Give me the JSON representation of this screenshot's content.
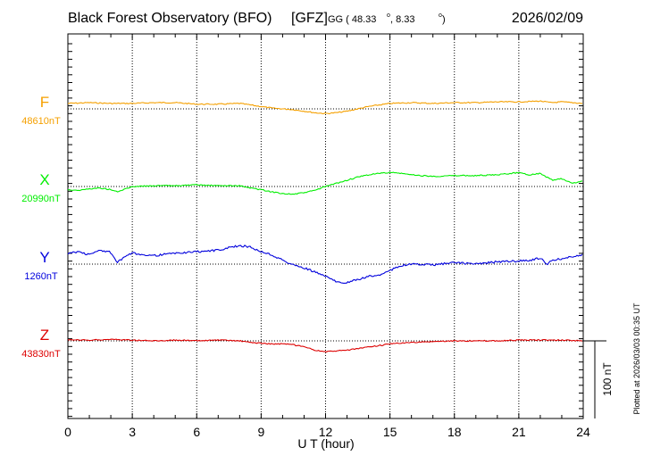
{
  "header": {
    "station": "Black Forest Observatory (BFO)",
    "institute": "[GFZ]",
    "coords_prefix": "GG ( 48.33",
    "coords_mid": ",   8.33",
    "coords_suffix": ")",
    "date": "2026/02/09"
  },
  "side_note": "Plotted at 2026/03/03 00:35 UT",
  "scale_label": "100 nT",
  "chart_data": {
    "type": "line",
    "xlabel": "U T (hour)",
    "xlim": [
      0,
      24
    ],
    "xticks": [
      "0",
      "3",
      "6",
      "9",
      "12",
      "15",
      "18",
      "21",
      "24"
    ],
    "grid": true,
    "scale_nT": 100,
    "series": [
      {
        "name": "F",
        "baseline_label": "48610nT",
        "color": "#f5a000",
        "x": [
          0,
          1,
          2,
          3,
          4,
          5,
          6,
          7,
          8,
          8.5,
          9,
          9.5,
          10,
          10.5,
          11,
          11.5,
          12,
          12.5,
          13,
          13.5,
          14,
          14.5,
          15,
          16,
          17,
          18,
          19,
          20,
          21,
          22,
          22.5,
          23,
          24
        ],
        "values": [
          7,
          8,
          7,
          7,
          8,
          8,
          6,
          6,
          7,
          5,
          3,
          1,
          0,
          -1,
          -3,
          -5,
          -6,
          -5,
          -3,
          0,
          3,
          5,
          7,
          8,
          7,
          8,
          8,
          9,
          9,
          10,
          8,
          9,
          7
        ]
      },
      {
        "name": "X",
        "baseline_label": "20990nT",
        "color": "#00ee00",
        "x": [
          0,
          0.5,
          1,
          1.5,
          2,
          2.3,
          2.7,
          3,
          4,
          5,
          6,
          7,
          8,
          8.5,
          9,
          9.5,
          10,
          10.5,
          11,
          11.5,
          12,
          12.5,
          13,
          13.5,
          14,
          14.5,
          15,
          15.5,
          16,
          17,
          18,
          19,
          20,
          21,
          21.5,
          22,
          22.3,
          22.6,
          23,
          23.5,
          24
        ],
        "values": [
          -4,
          -5,
          -3,
          -2,
          -4,
          -7,
          -3,
          0,
          1,
          1,
          2,
          1,
          1,
          -2,
          -4,
          -7,
          -9,
          -10,
          -8,
          -5,
          0,
          4,
          8,
          12,
          15,
          17,
          18,
          17,
          15,
          13,
          14,
          14,
          15,
          18,
          15,
          17,
          12,
          8,
          10,
          4,
          7
        ]
      },
      {
        "name": "Y",
        "baseline_label": "1260nT",
        "color": "#0000dd",
        "x": [
          0,
          0.5,
          1,
          1.5,
          2,
          2.3,
          2.7,
          3,
          4,
          5,
          6,
          7,
          8,
          8.5,
          9,
          9.5,
          10,
          10.5,
          11,
          11.5,
          12,
          12.5,
          13,
          13.5,
          14,
          14.5,
          15,
          15.5,
          16,
          17,
          18,
          19,
          20,
          21,
          21.5,
          22,
          22.3,
          22.6,
          23,
          23.5,
          24
        ],
        "values": [
          14,
          16,
          12,
          18,
          15,
          2,
          10,
          14,
          11,
          14,
          16,
          18,
          24,
          22,
          16,
          12,
          5,
          -1,
          -5,
          -10,
          -16,
          -22,
          -24,
          -20,
          -16,
          -14,
          -8,
          -2,
          0,
          -1,
          2,
          0,
          3,
          4,
          5,
          8,
          0,
          5,
          7,
          10,
          12
        ]
      },
      {
        "name": "Z",
        "baseline_label": "43830nT",
        "color": "#dd0000",
        "x": [
          0,
          1,
          2,
          3,
          4,
          5,
          6,
          7,
          8,
          8.5,
          9,
          9.5,
          10,
          10.5,
          11,
          11.5,
          12,
          12.5,
          13,
          13.5,
          14,
          14.5,
          15,
          16,
          17,
          18,
          19,
          20,
          21,
          22,
          23,
          24
        ],
        "values": [
          1,
          1,
          2,
          1,
          0,
          1,
          0,
          1,
          0,
          -2,
          -3,
          -4,
          -4,
          -5,
          -8,
          -12,
          -14,
          -13,
          -12,
          -10,
          -8,
          -6,
          -4,
          -2,
          -1,
          0,
          0,
          0,
          1,
          1,
          1,
          0
        ]
      }
    ]
  }
}
